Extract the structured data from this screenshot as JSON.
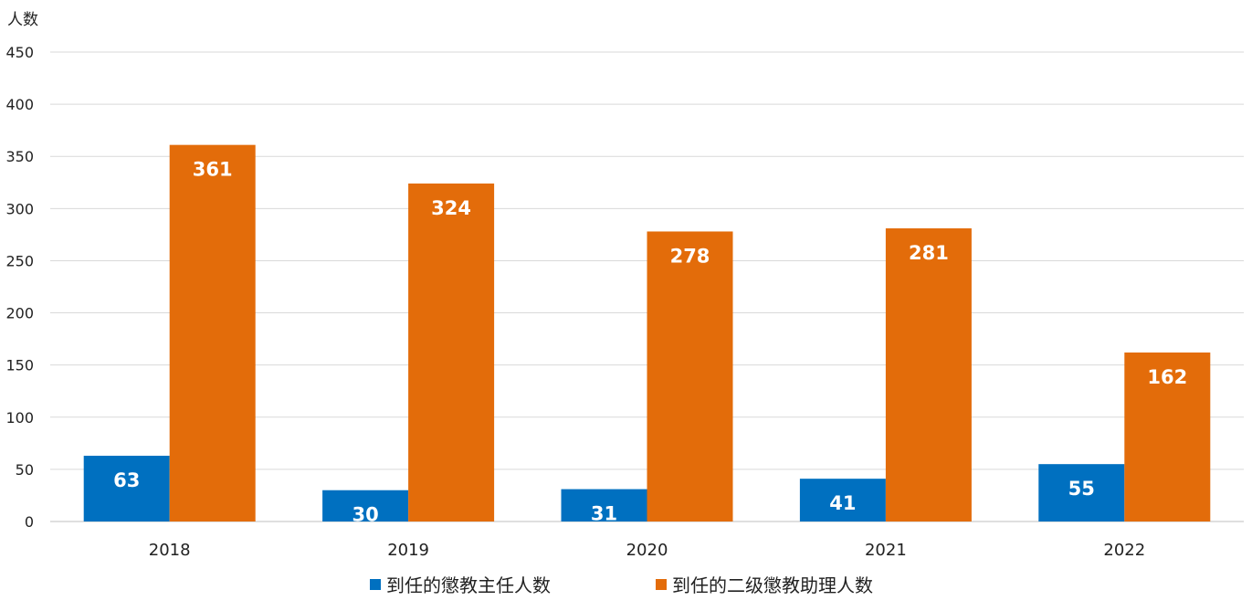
{
  "chart_data": {
    "type": "bar",
    "ylabel": "人数",
    "categories": [
      "2018",
      "2019",
      "2020",
      "2021",
      "2022"
    ],
    "series": [
      {
        "name": "到任的懲教主任人数",
        "color": "#0070C0",
        "values": [
          63,
          30,
          31,
          41,
          55
        ]
      },
      {
        "name": "到任的二级懲教助理人数",
        "color": "#E36C0A",
        "values": [
          361,
          324,
          278,
          281,
          162
        ]
      }
    ],
    "ylim": [
      0,
      450
    ],
    "yticks": [
      0,
      50,
      100,
      150,
      200,
      250,
      300,
      350,
      400,
      450
    ],
    "grid": true,
    "legend_position": "bottom",
    "data_labels": true
  }
}
